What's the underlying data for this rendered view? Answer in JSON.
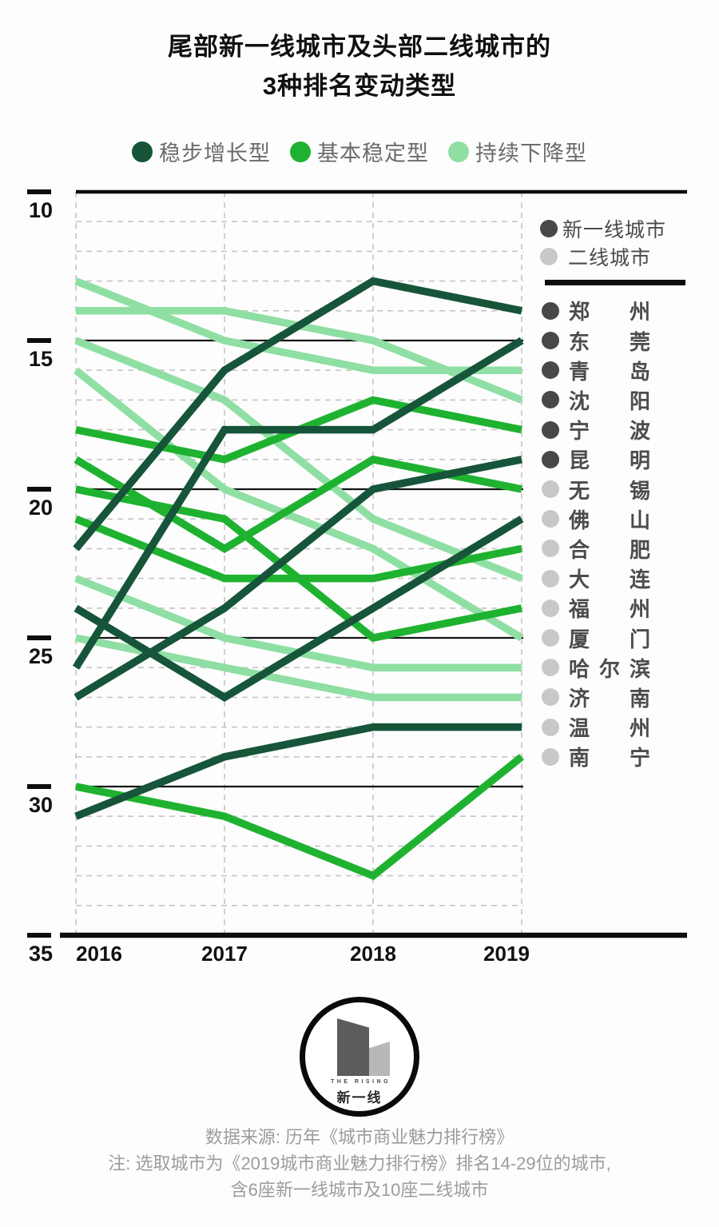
{
  "title": {
    "line1": "尾部新一线城市及头部二线城市的",
    "line2": "3种排名变动类型"
  },
  "type_legend": {
    "items": [
      {
        "label": "稳步增长型",
        "color": "#16553a"
      },
      {
        "label": "基本稳定型",
        "color": "#1fb230"
      },
      {
        "label": "持续下降型",
        "color": "#8fdfa4"
      }
    ]
  },
  "tier_legend": {
    "items": [
      {
        "label": "新一线城市",
        "color": "#484848"
      },
      {
        "label": "二线城市",
        "color": "#c8c8c8"
      }
    ]
  },
  "chart_data": {
    "type": "line",
    "x": [
      2016,
      2017,
      2018,
      2019
    ],
    "x_tick_labels": [
      "2016",
      "2017",
      "2018",
      "2019"
    ],
    "y_axis": {
      "inverted": true,
      "min": 10,
      "max": 35,
      "ticks": [
        10,
        15,
        20,
        25,
        30,
        35
      ],
      "tick_labels": [
        "10",
        "15",
        "20",
        "25",
        "30",
        "35"
      ],
      "meaning": "城市商业魅力排行榜总排名"
    },
    "grid": {
      "horizontal_dashed_every_rank": true,
      "vertical_dashed_per_year": true
    },
    "type_colors": {
      "稳步增长型": "#16553a",
      "基本稳定型": "#1fb230",
      "持续下降型": "#8fdfa4"
    },
    "series": [
      {
        "name": "郑州",
        "tier": "新一线城市",
        "type": "稳步增长型",
        "values": [
          22,
          16,
          13,
          14
        ]
      },
      {
        "name": "东莞",
        "tier": "新一线城市",
        "type": "稳步增长型",
        "values": [
          26,
          18,
          18,
          15
        ]
      },
      {
        "name": "青岛",
        "tier": "新一线城市",
        "type": "持续下降型",
        "values": [
          13,
          15,
          16,
          16
        ]
      },
      {
        "name": "沈阳",
        "tier": "新一线城市",
        "type": "持续下降型",
        "values": [
          14,
          14,
          15,
          17
        ]
      },
      {
        "name": "宁波",
        "tier": "新一线城市",
        "type": "基本稳定型",
        "values": [
          18,
          19,
          17,
          18
        ]
      },
      {
        "name": "昆明",
        "tier": "新一线城市",
        "type": "稳步增长型",
        "values": [
          27,
          24,
          20,
          19
        ]
      },
      {
        "name": "无锡",
        "tier": "二线城市",
        "type": "基本稳定型",
        "values": [
          19,
          22,
          19,
          20
        ]
      },
      {
        "name": "佛山",
        "tier": "二线城市",
        "type": "稳步增长型",
        "values": [
          24,
          27,
          24,
          21
        ]
      },
      {
        "name": "合肥",
        "tier": "二线城市",
        "type": "基本稳定型",
        "values": [
          21,
          23,
          23,
          22
        ]
      },
      {
        "name": "大连",
        "tier": "二线城市",
        "type": "持续下降型",
        "values": [
          15,
          17,
          21,
          23
        ]
      },
      {
        "name": "福州",
        "tier": "二线城市",
        "type": "基本稳定型",
        "values": [
          20,
          21,
          25,
          24
        ]
      },
      {
        "name": "厦门",
        "tier": "二线城市",
        "type": "持续下降型",
        "values": [
          16,
          20,
          22,
          25
        ]
      },
      {
        "name": "哈尔滨",
        "tier": "二线城市",
        "type": "持续下降型",
        "values": [
          23,
          25,
          26,
          26
        ]
      },
      {
        "name": "济南",
        "tier": "二线城市",
        "type": "持续下降型",
        "values": [
          25,
          26,
          27,
          27
        ]
      },
      {
        "name": "温州",
        "tier": "二线城市",
        "type": "稳步增长型",
        "values": [
          31,
          29,
          28,
          28
        ]
      },
      {
        "name": "南宁",
        "tier": "二线城市",
        "type": "基本稳定型",
        "values": [
          30,
          31,
          33,
          29
        ]
      }
    ]
  },
  "footer": {
    "logo": {
      "text_top": "THE RISING",
      "text_bottom": "新一线"
    },
    "lines": [
      "数据来源: 历年《城市商业魅力排行榜》",
      "注: 选取城市为《2019城市商业魅力排行榜》排名14-29位的城市,",
      "含6座新一线城市及10座二线城市"
    ]
  }
}
